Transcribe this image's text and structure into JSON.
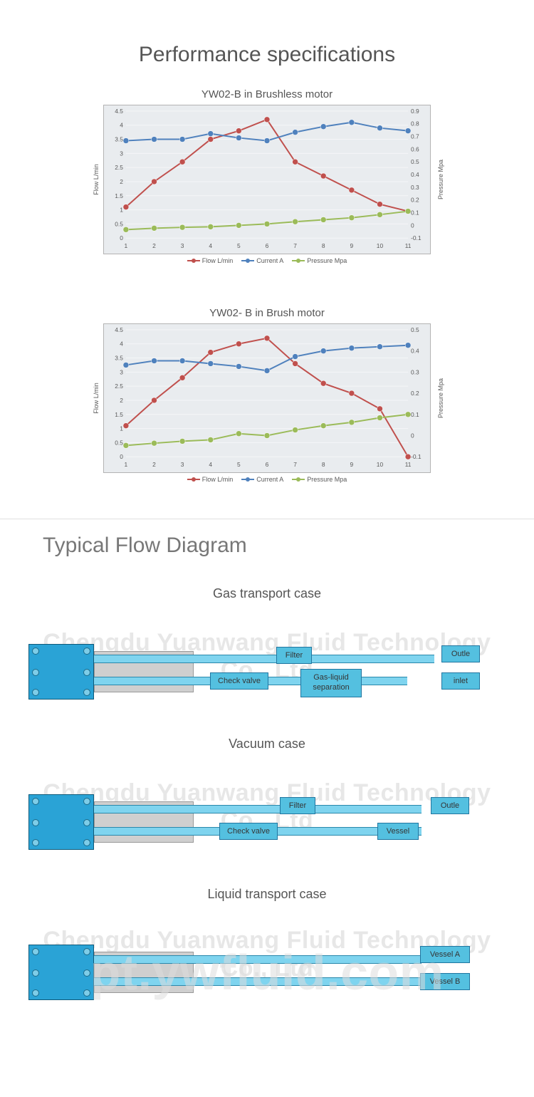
{
  "page": {
    "main_title": "Performance specifications",
    "main_title_fontsize": 30,
    "flow_heading": "Typical Flow Diagram"
  },
  "colors": {
    "page_bg": "#ffffff",
    "title_color": "#555555",
    "plot_bg": "#e9ecef",
    "plot_border": "#b3b3b3",
    "grid": "#f5f6f8",
    "flow_red": "#c0504d",
    "current_blue": "#4f81bd",
    "pressure_green": "#9bbb59",
    "tick_text": "#595959",
    "diagram_box_fill": "#54c0e0",
    "diagram_box_border": "#2176a0",
    "diagram_pipe_fill": "#7fd4ef",
    "diagram_pipe_border": "#2a88ab",
    "pump_fill": "#2aa3d6",
    "motor_fill": "#cfcfcf",
    "watermark_color": "#bdbdbd"
  },
  "chart1": {
    "type": "line",
    "title": "YW02-B in Brushless motor",
    "title_fontsize": 15,
    "x_categories": [
      1,
      2,
      3,
      4,
      5,
      6,
      7,
      8,
      9,
      10,
      11
    ],
    "left_axis": {
      "label": "Flow L/min",
      "min": 0,
      "max": 4.5,
      "step": 0.5
    },
    "right_axis": {
      "label": "Pressure Mpa",
      "min": -0.1,
      "max": 0.9,
      "step": 0.1
    },
    "series": {
      "flow": {
        "label": "Flow L/min",
        "color": "#c0504d",
        "values": [
          1.1,
          2.0,
          2.7,
          3.5,
          3.8,
          4.2,
          2.7,
          2.2,
          1.7,
          1.2,
          0.95
        ]
      },
      "current": {
        "label": "Current A",
        "color": "#4f81bd",
        "values": [
          3.45,
          3.5,
          3.5,
          3.7,
          3.55,
          3.45,
          3.75,
          3.95,
          4.1,
          3.9,
          3.8
        ]
      },
      "pressure": {
        "label": "Pressure Mpa",
        "color": "#9bbb59",
        "values": [
          0.3,
          0.35,
          0.38,
          0.4,
          0.45,
          0.5,
          0.58,
          0.65,
          0.72,
          0.83,
          0.95
        ],
        "_note": "plotted on left-axis scale matching visual position"
      }
    },
    "legend_position": "bottom",
    "marker_size": 4,
    "line_width": 2,
    "grid_on": true
  },
  "chart2": {
    "type": "line",
    "title": "YW02- B in Brush motor",
    "title_fontsize": 15,
    "x_categories": [
      1,
      2,
      3,
      4,
      5,
      6,
      7,
      8,
      9,
      10,
      11
    ],
    "left_axis": {
      "label": "Flow L/min",
      "min": 0,
      "max": 4.5,
      "step": 0.5
    },
    "right_axis": {
      "label": "Pressure Mpa",
      "min": -0.1,
      "max": 0.5,
      "step": 0.1
    },
    "series": {
      "flow": {
        "label": "Flow L/min",
        "color": "#c0504d",
        "values": [
          1.1,
          2.0,
          2.8,
          3.7,
          4.0,
          4.2,
          3.3,
          2.6,
          2.25,
          1.7,
          0.0
        ]
      },
      "current": {
        "label": "Current A",
        "color": "#4f81bd",
        "values": [
          3.25,
          3.4,
          3.4,
          3.3,
          3.2,
          3.05,
          3.55,
          3.75,
          3.85,
          3.9,
          3.95
        ]
      },
      "pressure": {
        "label": "Pressure Mpa",
        "color": "#9bbb59",
        "values": [
          0.4,
          0.48,
          0.55,
          0.6,
          0.82,
          0.75,
          0.95,
          1.1,
          1.22,
          1.38,
          1.5
        ],
        "_note": "plotted on left-axis scale matching visual position"
      }
    },
    "legend_position": "bottom",
    "marker_size": 4,
    "line_width": 2,
    "grid_on": true
  },
  "flow_diagrams": [
    {
      "title": "Gas transport case",
      "boxes": {
        "filter": "Filter",
        "check_valve": "Check valve",
        "separator_l1": "Gas-liquid",
        "separator_l2": "separation",
        "outlet": "Outle",
        "inlet": "inlet"
      }
    },
    {
      "title": "Vacuum case",
      "boxes": {
        "filter": "Filter",
        "check_valve": "Check valve",
        "vessel": "Vessel",
        "outlet": "Outle"
      }
    },
    {
      "title": "Liquid transport case",
      "boxes": {
        "vessel_a": "Vessel A",
        "vessel_b": "Vessel B"
      }
    }
  ],
  "watermarks": {
    "company": "Chengdu Yuanwang Fluid Technology Co., Ltd",
    "domain": "pt.ywfluid.com"
  }
}
